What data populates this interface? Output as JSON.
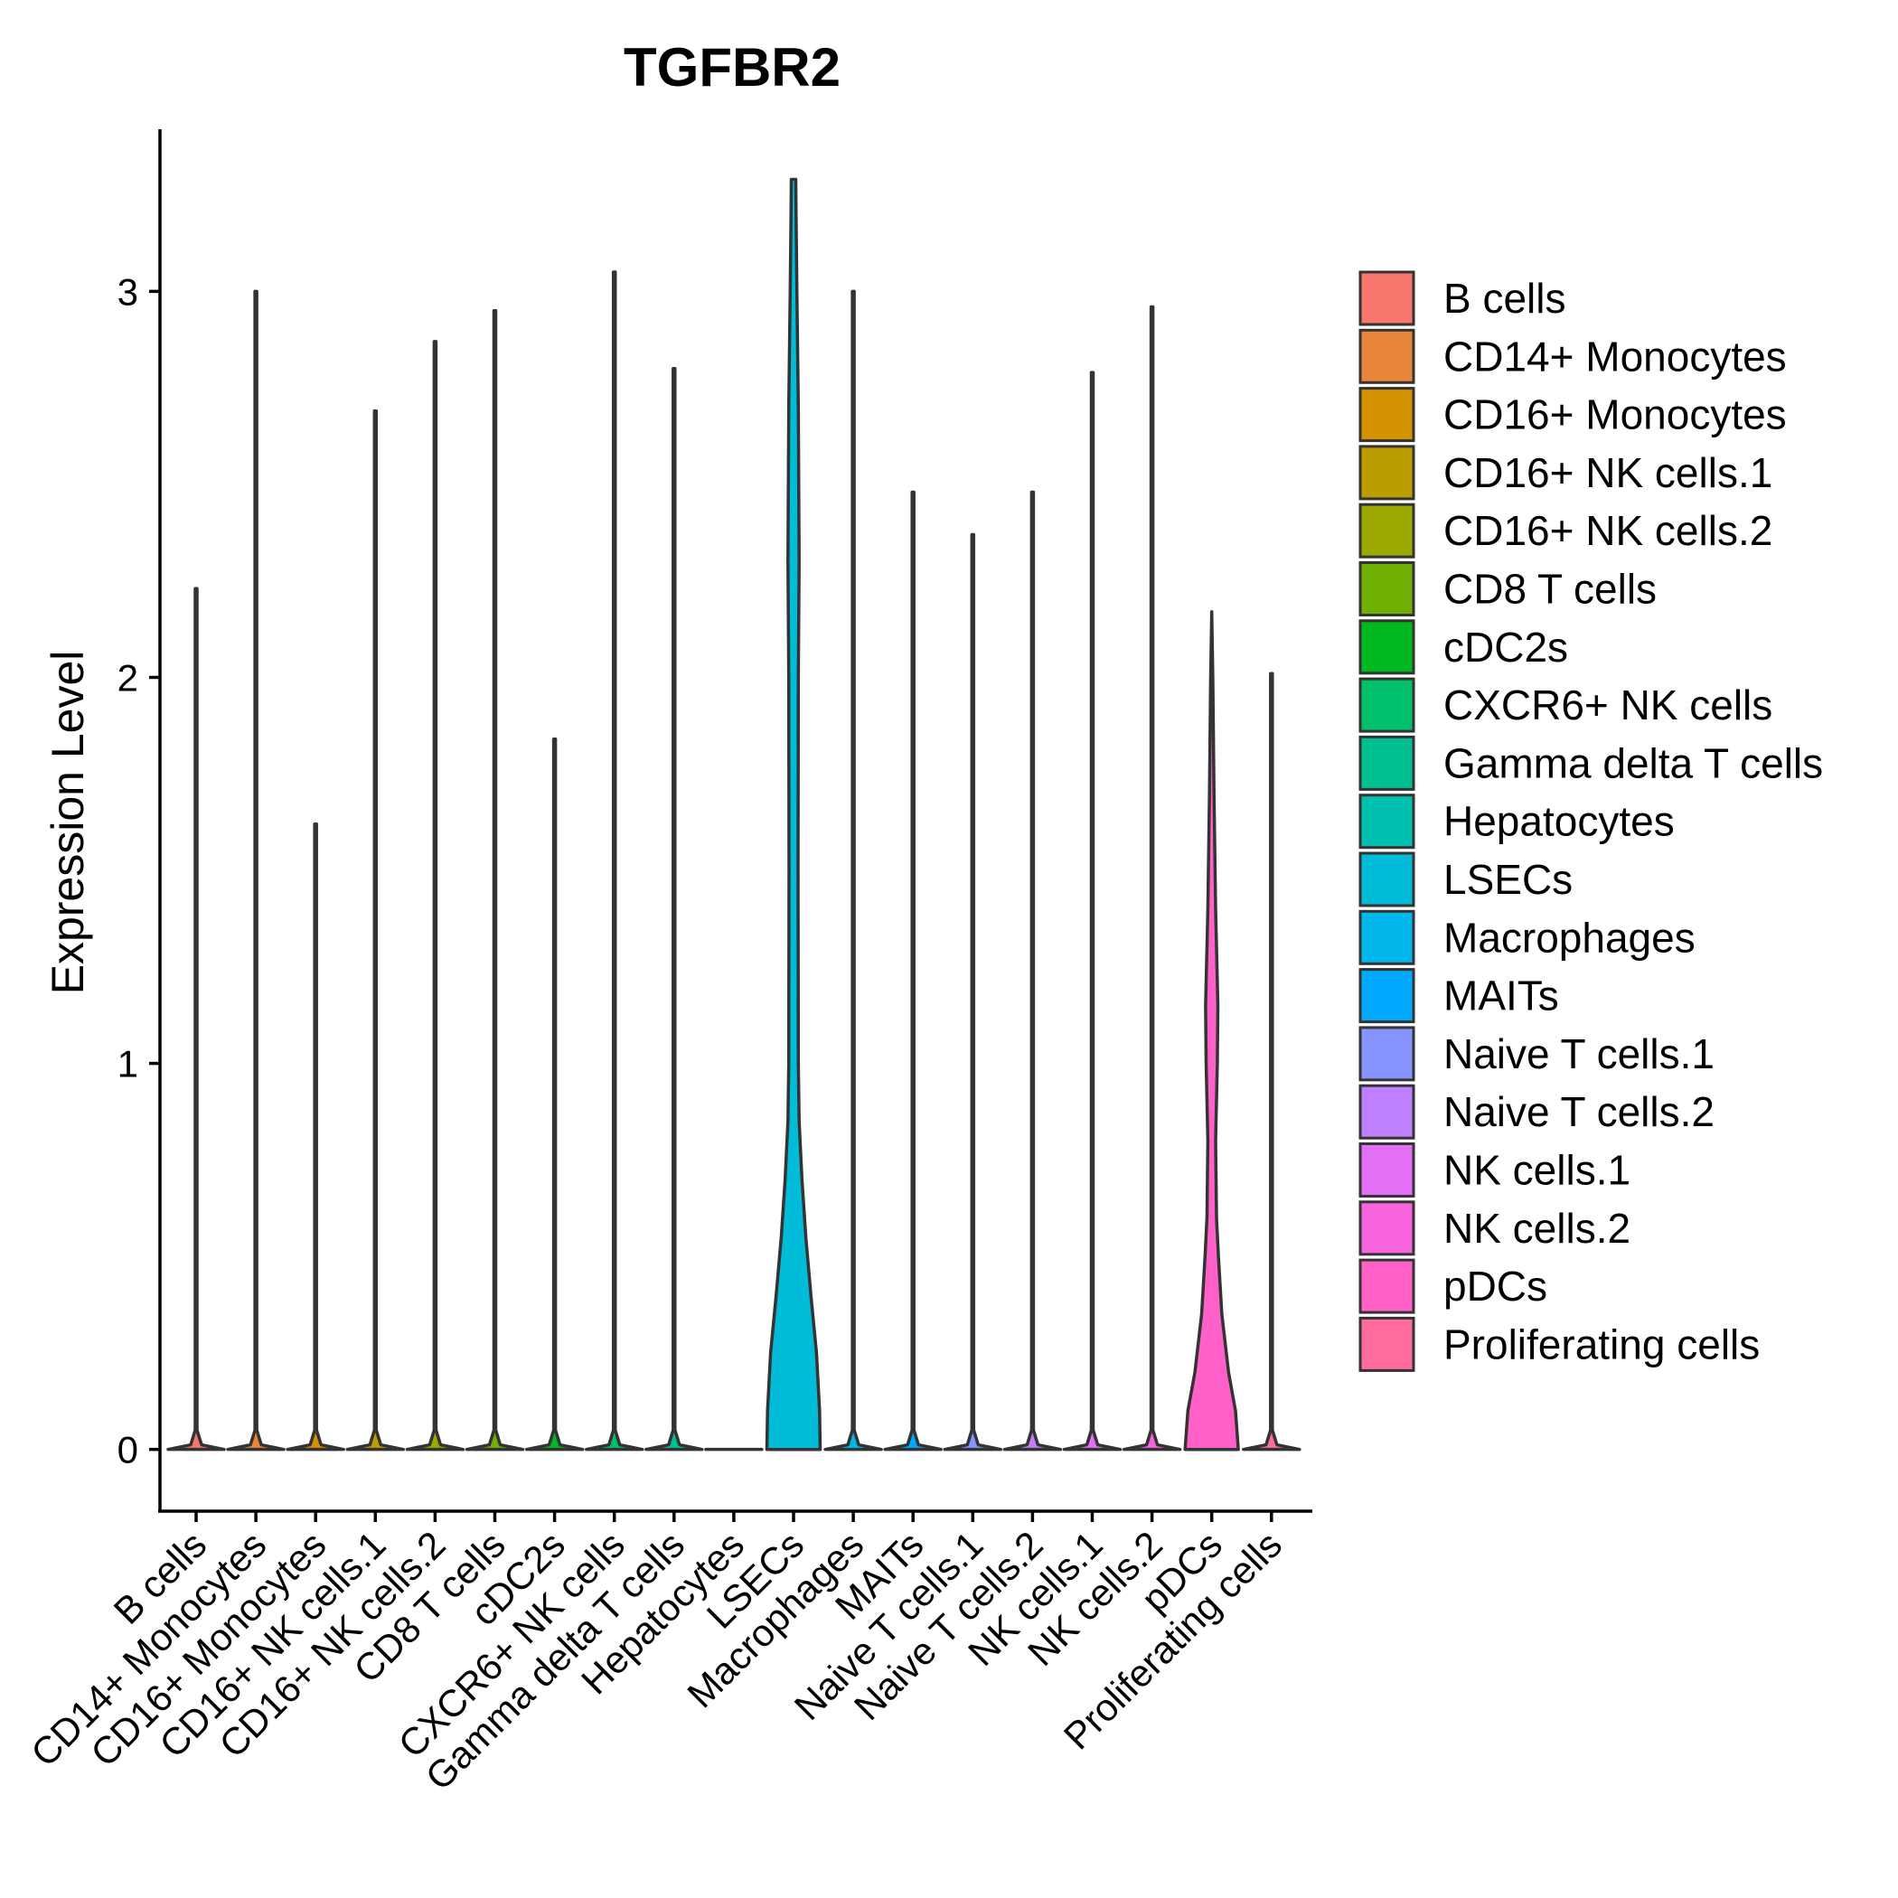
{
  "chart_data": {
    "type": "violin",
    "title": "TGFBR2",
    "xlabel": "",
    "ylabel": "Expression Level",
    "ylim": [
      -0.16,
      3.42
    ],
    "yticks": [
      0,
      1,
      2,
      3
    ],
    "grid": false,
    "legend_position": "right",
    "categories": [
      "B cells",
      "CD14+ Monocytes",
      "CD16+ Monocytes",
      "CD16+ NK cells.1",
      "CD16+ NK cells.2",
      "CD8 T cells",
      "cDC2s",
      "CXCR6+ NK cells",
      "Gamma delta T cells",
      "Hepatocytes",
      "LSECs",
      "Macrophages",
      "MAITs",
      "Naive T cells.1",
      "Naive T cells.2",
      "NK cells.1",
      "NK cells.2",
      "pDCs",
      "Proliferating cells"
    ],
    "colors": [
      "#F8766D",
      "#E8853A",
      "#D39200",
      "#BB9D00",
      "#9AA800",
      "#6FB000",
      "#00B81F",
      "#00C06B",
      "#00BF91",
      "#00C0AF",
      "#00BCD8",
      "#00B6EB",
      "#00A9FF",
      "#8794FF",
      "#BF80FF",
      "#E46FF7",
      "#F863DE",
      "#FF61C8",
      "#FF6C9C"
    ],
    "max_values": [
      2.23,
      3.0,
      1.62,
      2.69,
      2.87,
      2.95,
      1.84,
      3.05,
      2.8,
      0.0,
      3.29,
      3.0,
      2.48,
      2.37,
      2.48,
      2.79,
      2.96,
      2.17,
      2.01
    ],
    "density_profiles": {
      "LSECs": [
        [
          0.0,
          0.95
        ],
        [
          0.1,
          0.93
        ],
        [
          0.25,
          0.82
        ],
        [
          0.4,
          0.62
        ],
        [
          0.55,
          0.44
        ],
        [
          0.7,
          0.3
        ],
        [
          0.85,
          0.2
        ],
        [
          1.0,
          0.17
        ],
        [
          1.5,
          0.16
        ],
        [
          2.0,
          0.17
        ],
        [
          2.3,
          0.2
        ],
        [
          2.7,
          0.17
        ],
        [
          3.0,
          0.12
        ],
        [
          3.2,
          0.09
        ],
        [
          3.29,
          0.08
        ]
      ],
      "pDCs": [
        [
          0.0,
          0.95
        ],
        [
          0.1,
          0.85
        ],
        [
          0.2,
          0.6
        ],
        [
          0.35,
          0.36
        ],
        [
          0.5,
          0.24
        ],
        [
          0.6,
          0.17
        ],
        [
          0.8,
          0.14
        ],
        [
          1.0,
          0.2
        ],
        [
          1.15,
          0.22
        ],
        [
          1.4,
          0.14
        ],
        [
          1.7,
          0.08
        ],
        [
          2.0,
          0.04
        ],
        [
          2.17,
          0.0
        ]
      ]
    }
  }
}
